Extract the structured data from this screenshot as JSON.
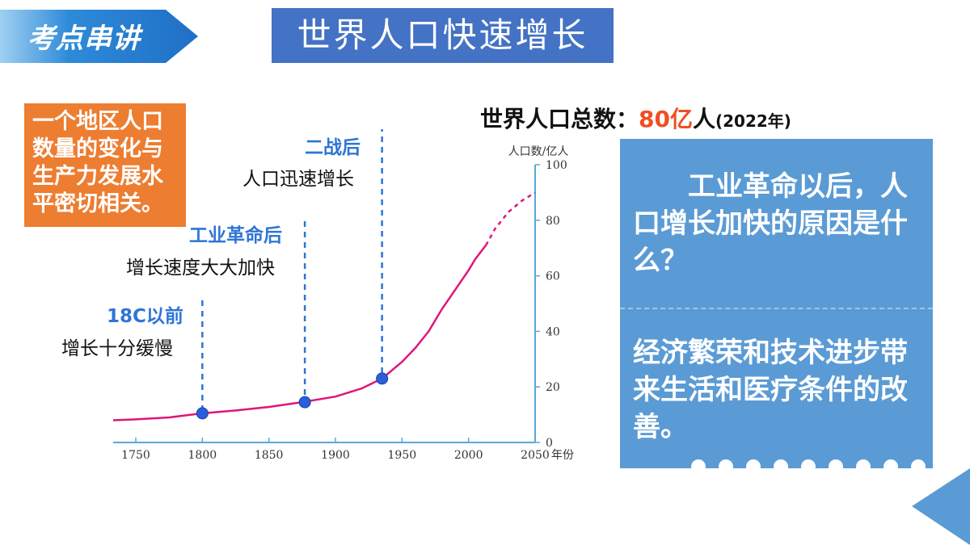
{
  "header": {
    "section_label": "考点串讲",
    "title": "世界人口快速增长"
  },
  "note_box": {
    "lines": [
      "一个地区人口",
      "数量的变化与",
      "生产力发展水",
      "平密切相关。"
    ]
  },
  "eras": [
    {
      "heading": "18C以前",
      "description": "增长十分缓慢"
    },
    {
      "heading": "工业革命后",
      "description": "增长速度大大加快"
    },
    {
      "heading": "二战后",
      "description": "人口迅速增长"
    }
  ],
  "population_total": {
    "label": "世界人口总数：",
    "value": "80亿",
    "unit": "人",
    "year": "(2022年)"
  },
  "panel": {
    "question": "　　工业革命以后，人口增长加快的原因是什么？",
    "answer": "经济繁荣和技术进步带来生活和医疗条件的改善。"
  },
  "colors": {
    "title_bg": "#4472c4",
    "note_bg": "#ed7d31",
    "panel_bg": "#5b9bd5",
    "curve": "#e0157a",
    "axis": "#5aa8d6",
    "era_heading": "#2e75d6",
    "highlight": "#f04e23"
  },
  "chart_data": {
    "type": "line",
    "ylabel": "人口数/亿人",
    "xlabel": "年份",
    "xlim": [
      1733,
      2050
    ],
    "ylim": [
      0,
      100
    ],
    "x_ticks": [
      "1750",
      "1800",
      "1850",
      "1900",
      "1950",
      "2000",
      "2050"
    ],
    "y_ticks": [
      "0",
      "20",
      "40",
      "60",
      "80",
      "100"
    ],
    "series": [
      {
        "name": "",
        "style": "solid",
        "x": [
          1733,
          1750,
          1775,
          1800,
          1825,
          1850,
          1875,
          1900,
          1920,
          1935,
          1950,
          1960,
          1970,
          1980,
          1990,
          2000,
          2005,
          2013
        ],
        "y": [
          8,
          8.3,
          9,
          10.5,
          11.5,
          12.8,
          14.5,
          16.5,
          19.5,
          23,
          29,
          34,
          40,
          48,
          55,
          62,
          66,
          71
        ]
      },
      {
        "name": "",
        "style": "dashed",
        "x": [
          2013,
          2020,
          2030,
          2040,
          2050
        ],
        "y": [
          71,
          77,
          83,
          87,
          90
        ]
      }
    ],
    "markers": [
      {
        "x": 1800,
        "y": 10.5
      },
      {
        "x": 1877,
        "y": 14.5
      },
      {
        "x": 1935,
        "y": 23
      }
    ]
  }
}
